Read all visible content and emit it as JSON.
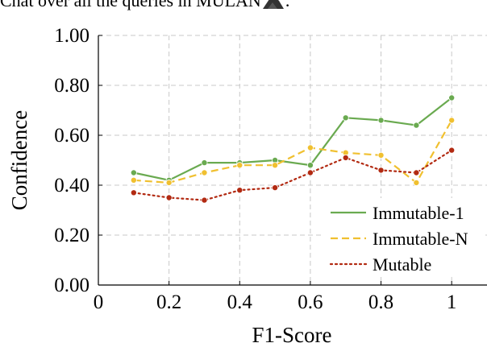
{
  "caption": {
    "prefix": "Chat over all the queries in ",
    "name": "MULAN",
    "suffix": "."
  },
  "chart_data": {
    "type": "line",
    "x": [
      0.1,
      0.2,
      0.3,
      0.4,
      0.5,
      0.6,
      0.7,
      0.8,
      0.9,
      1.0
    ],
    "series": [
      {
        "name": "Immutable-1",
        "color": "#6aaa50",
        "style": "solid",
        "values": [
          0.45,
          0.42,
          0.49,
          0.49,
          0.5,
          0.48,
          0.67,
          0.66,
          0.64,
          0.75
        ]
      },
      {
        "name": "Immutable-N",
        "color": "#f0c030",
        "style": "dashed",
        "values": [
          0.42,
          0.41,
          0.45,
          0.48,
          0.48,
          0.55,
          0.53,
          0.52,
          0.41,
          0.66
        ]
      },
      {
        "name": "Mutable",
        "color": "#b22a12",
        "style": "dotted",
        "values": [
          0.37,
          0.35,
          0.34,
          0.38,
          0.39,
          0.45,
          0.51,
          0.46,
          0.45,
          0.54
        ]
      }
    ],
    "xlabel": "F1-Score",
    "ylabel": "Confidence",
    "xlim": [
      0,
      1.1
    ],
    "ylim": [
      0,
      1.0
    ],
    "xticks": [
      0,
      0.2,
      0.4,
      0.6,
      0.8,
      1
    ],
    "xtick_labels": [
      "0",
      "0.2",
      "0.4",
      "0.6",
      "0.8",
      "1"
    ],
    "yticks": [
      0,
      0.2,
      0.4,
      0.6,
      0.8,
      1.0
    ],
    "ytick_labels": [
      "0.00",
      "0.20",
      "0.40",
      "0.60",
      "0.80",
      "1.00"
    ],
    "grid": true,
    "legend_position": "bottom-right"
  }
}
